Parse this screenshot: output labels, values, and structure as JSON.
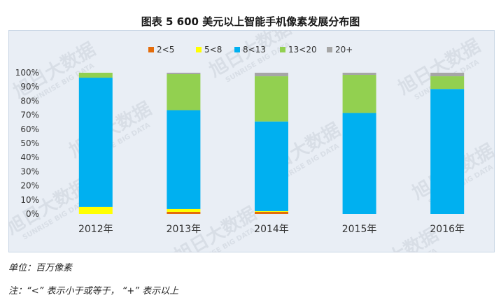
{
  "title": "图表 5    600 美元以上智能手机像素发展分布图",
  "watermark": {
    "brand": "旭日大数据",
    "sub": "SUNRISE BIG DATA"
  },
  "notes": {
    "unit": "单位：百万像素",
    "explain": "注：“<” 表示小于或等于， “+” 表示以上"
  },
  "chart_data": {
    "type": "bar",
    "stacked": true,
    "categories": [
      "2012年",
      "2013年",
      "2014年",
      "2015年",
      "2016年"
    ],
    "ylim": [
      0,
      100
    ],
    "yticks": [
      "0%",
      "10%",
      "20%",
      "30%",
      "40%",
      "50%",
      "60%",
      "70%",
      "80%",
      "90%",
      "100%"
    ],
    "legend_position": "top",
    "grid": false,
    "series": [
      {
        "name": "2<5",
        "color": "#e46c0a",
        "values": [
          0,
          1.5,
          1.5,
          0,
          0
        ]
      },
      {
        "name": "5<8",
        "color": "#ffff00",
        "values": [
          5,
          2,
          0.5,
          0,
          0
        ]
      },
      {
        "name": "8<13",
        "color": "#00b0f0",
        "values": [
          91.5,
          70,
          63.5,
          71.5,
          88.5
        ]
      },
      {
        "name": "13<20",
        "color": "#92d050",
        "values": [
          3.5,
          25.5,
          32,
          27,
          9
        ]
      },
      {
        "name": "20+",
        "color": "#a6a6a6",
        "values": [
          0,
          1,
          2.5,
          1.5,
          2.5
        ]
      }
    ]
  }
}
